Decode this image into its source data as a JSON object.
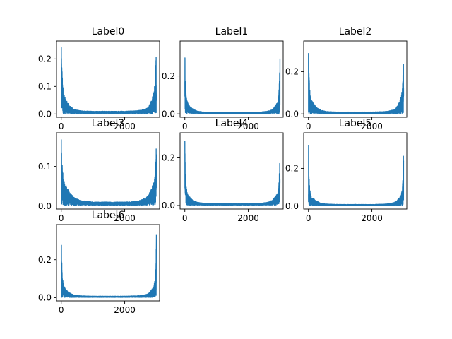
{
  "chart_data": [
    {
      "type": "line",
      "title": "Label0",
      "x_ticks": [
        0,
        2000
      ],
      "y_ticks": [
        "0.0",
        "0.1",
        "0.2"
      ],
      "xlim": [
        -150,
        3100
      ],
      "ylim": [
        -0.012,
        0.265
      ],
      "n_points": 3000,
      "peak": 0.25,
      "tail": 0.05,
      "floor": 0.006,
      "envelope": {
        "x": [
          0,
          15,
          40,
          80,
          150,
          250,
          400,
          600,
          1000,
          1500,
          2000,
          2400,
          2600,
          2750,
          2850,
          2920,
          2960,
          2985,
          3000
        ],
        "y": [
          0.25,
          0.2,
          0.12,
          0.07,
          0.05,
          0.03,
          0.015,
          0.01,
          0.008,
          0.008,
          0.008,
          0.01,
          0.014,
          0.022,
          0.05,
          0.08,
          0.12,
          0.2,
          0.25
        ]
      }
    },
    {
      "type": "line",
      "title": "Label1",
      "x_ticks": [
        0,
        2000
      ],
      "y_ticks": [
        "0.0",
        "0.2"
      ],
      "xlim": [
        -150,
        3100
      ],
      "ylim": [
        -0.018,
        0.385
      ],
      "n_points": 3000,
      "peak": 0.36,
      "tail": 0.07,
      "floor": 0.006,
      "envelope": {
        "x": [
          0,
          15,
          40,
          80,
          150,
          250,
          400,
          600,
          1000,
          1500,
          2000,
          2400,
          2600,
          2750,
          2850,
          2920,
          2960,
          2985,
          3000
        ],
        "y": [
          0.36,
          0.2,
          0.1,
          0.06,
          0.04,
          0.025,
          0.012,
          0.008,
          0.006,
          0.006,
          0.006,
          0.008,
          0.012,
          0.02,
          0.04,
          0.06,
          0.1,
          0.2,
          0.36
        ]
      }
    },
    {
      "type": "line",
      "title": "Label2",
      "x_ticks": [
        0,
        2000
      ],
      "y_ticks": [
        "0.0",
        "0.2"
      ],
      "xlim": [
        -150,
        3100
      ],
      "ylim": [
        -0.016,
        0.345
      ],
      "n_points": 3000,
      "peak": 0.32,
      "tail": 0.06,
      "floor": 0.006,
      "envelope": {
        "x": [
          0,
          15,
          40,
          80,
          150,
          250,
          400,
          600,
          1000,
          1500,
          2000,
          2400,
          2600,
          2750,
          2850,
          2920,
          2960,
          2985,
          3000
        ],
        "y": [
          0.32,
          0.2,
          0.12,
          0.07,
          0.05,
          0.03,
          0.015,
          0.009,
          0.007,
          0.007,
          0.007,
          0.009,
          0.014,
          0.022,
          0.05,
          0.08,
          0.12,
          0.2,
          0.32
        ]
      }
    },
    {
      "type": "line",
      "title": "Label3",
      "x_ticks": [
        0,
        2000
      ],
      "y_ticks": [
        "0.0",
        "0.1"
      ],
      "xlim": [
        -150,
        3100
      ],
      "ylim": [
        -0.008,
        0.185
      ],
      "n_points": 3000,
      "peak": 0.175,
      "tail": 0.06,
      "floor": 0.006,
      "envelope": {
        "x": [
          0,
          15,
          40,
          80,
          150,
          250,
          400,
          600,
          1000,
          1500,
          2000,
          2400,
          2600,
          2750,
          2850,
          2920,
          2960,
          2985,
          3000
        ],
        "y": [
          0.175,
          0.13,
          0.09,
          0.065,
          0.05,
          0.035,
          0.02,
          0.012,
          0.008,
          0.008,
          0.008,
          0.01,
          0.016,
          0.025,
          0.045,
          0.06,
          0.09,
          0.13,
          0.175
        ]
      }
    },
    {
      "type": "line",
      "title": "Label4",
      "x_ticks": [
        0,
        2000
      ],
      "y_ticks": [
        "0.0",
        "0.2"
      ],
      "xlim": [
        -150,
        3100
      ],
      "ylim": [
        -0.015,
        0.305
      ],
      "n_points": 3000,
      "peak": 0.28,
      "tail": 0.05,
      "floor": 0.005,
      "envelope": {
        "x": [
          0,
          15,
          40,
          80,
          150,
          250,
          400,
          600,
          1000,
          1500,
          2000,
          2400,
          2600,
          2750,
          2850,
          2920,
          2960,
          2985,
          3000
        ],
        "y": [
          0.28,
          0.15,
          0.08,
          0.05,
          0.035,
          0.02,
          0.012,
          0.008,
          0.006,
          0.006,
          0.006,
          0.008,
          0.012,
          0.02,
          0.035,
          0.05,
          0.08,
          0.15,
          0.28
        ]
      }
    },
    {
      "type": "line",
      "title": "Label5",
      "x_ticks": [
        0,
        2000
      ],
      "y_ticks": [
        "0.0",
        "0.2"
      ],
      "xlim": [
        -150,
        3100
      ],
      "ylim": [
        -0.017,
        0.39
      ],
      "n_points": 3000,
      "peak": 0.36,
      "tail": 0.06,
      "floor": 0.005,
      "envelope": {
        "x": [
          0,
          15,
          40,
          80,
          150,
          250,
          400,
          600,
          1000,
          1500,
          2000,
          2400,
          2600,
          2750,
          2850,
          2920,
          2960,
          2985,
          3000
        ],
        "y": [
          0.36,
          0.18,
          0.09,
          0.055,
          0.04,
          0.025,
          0.012,
          0.008,
          0.006,
          0.006,
          0.006,
          0.008,
          0.012,
          0.02,
          0.04,
          0.055,
          0.09,
          0.18,
          0.36
        ]
      }
    },
    {
      "type": "line",
      "title": "Label6",
      "x_ticks": [
        0,
        2000
      ],
      "y_ticks": [
        "0.0",
        "0.2"
      ],
      "xlim": [
        -150,
        3100
      ],
      "ylim": [
        -0.017,
        0.385
      ],
      "n_points": 3000,
      "peak": 0.35,
      "tail": 0.06,
      "floor": 0.006,
      "envelope": {
        "x": [
          0,
          15,
          40,
          80,
          150,
          250,
          400,
          600,
          1000,
          1500,
          2000,
          2400,
          2600,
          2750,
          2850,
          2920,
          2960,
          2985,
          3000
        ],
        "y": [
          0.35,
          0.2,
          0.1,
          0.06,
          0.04,
          0.025,
          0.012,
          0.008,
          0.006,
          0.006,
          0.006,
          0.008,
          0.012,
          0.02,
          0.04,
          0.06,
          0.1,
          0.2,
          0.35
        ]
      }
    }
  ],
  "colors": {
    "line": "#1f77b4",
    "axes": "#000000",
    "background": "#ffffff"
  }
}
